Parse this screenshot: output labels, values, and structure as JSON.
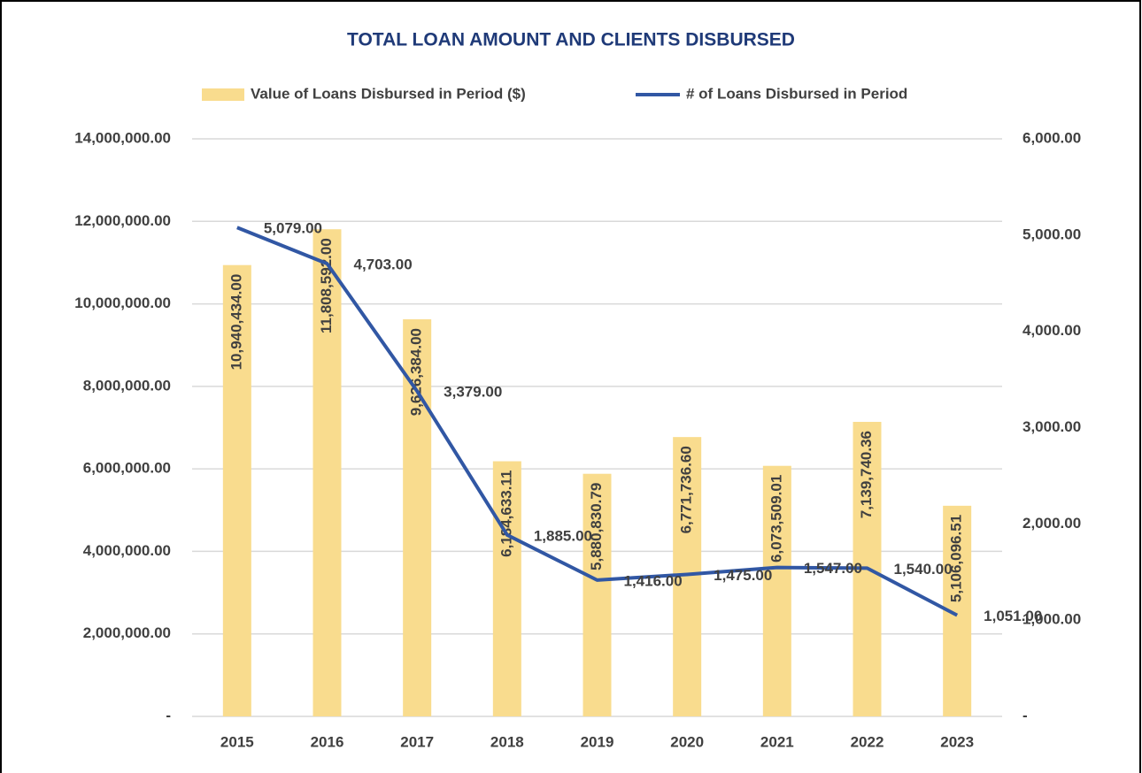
{
  "chart_data": {
    "type": "bar_line",
    "title": "TOTAL LOAN AMOUNT AND CLIENTS DISBURSED",
    "categories": [
      "2015",
      "2016",
      "2017",
      "2018",
      "2019",
      "2020",
      "2021",
      "2022",
      "2023"
    ],
    "series": [
      {
        "name": "Value of Loans Disbursed in Period ($)",
        "color": "#f9dc8e",
        "kind": "bar",
        "axis": "y",
        "values": [
          10940434.0,
          11808592.0,
          9626384.0,
          6184633.11,
          5880830.79,
          6771736.6,
          6073509.01,
          7139740.36,
          5106096.51
        ],
        "value_labels": [
          "10,940,434.00",
          "11,808,592.00",
          "9,626,384.00",
          "6,184,633.11",
          "5,880,830.79",
          "6,771,736.60",
          "6,073,509.01",
          "7,139,740.36",
          "5,106,096.51"
        ]
      },
      {
        "name": "# of Loans Disbursed in Period",
        "color": "#3157a4",
        "kind": "line",
        "axis": "y2",
        "values": [
          5079,
          4703,
          3379,
          1885,
          1416,
          1475,
          1547,
          1540,
          1051
        ],
        "value_labels": [
          "5,079.00",
          "4,703.00",
          "3,379.00",
          "1,885.00",
          "1,416.00",
          "1,475.00",
          "1,547.00",
          "1,540.00",
          "1,051.00"
        ]
      }
    ],
    "ylim": [
      0,
      14000000
    ],
    "yticks": [
      {
        "value": 0,
        "label": "-"
      },
      {
        "value": 2000000,
        "label": "2,000,000.00"
      },
      {
        "value": 4000000,
        "label": "4,000,000.00"
      },
      {
        "value": 6000000,
        "label": "6,000,000.00"
      },
      {
        "value": 8000000,
        "label": "8,000,000.00"
      },
      {
        "value": 10000000,
        "label": "10,000,000.00"
      },
      {
        "value": 12000000,
        "label": "12,000,000.00"
      },
      {
        "value": 14000000,
        "label": "14,000,000.00"
      }
    ],
    "y2lim": [
      0,
      6000
    ],
    "y2ticks": [
      {
        "value": 0,
        "label": "-"
      },
      {
        "value": 1000,
        "label": "1,000.00"
      },
      {
        "value": 2000,
        "label": "2,000.00"
      },
      {
        "value": 3000,
        "label": "3,000.00"
      },
      {
        "value": 4000,
        "label": "4,000.00"
      },
      {
        "value": 5000,
        "label": "5,000.00"
      },
      {
        "value": 6000,
        "label": "6,000.00"
      }
    ],
    "grid": true,
    "legend": "top"
  }
}
